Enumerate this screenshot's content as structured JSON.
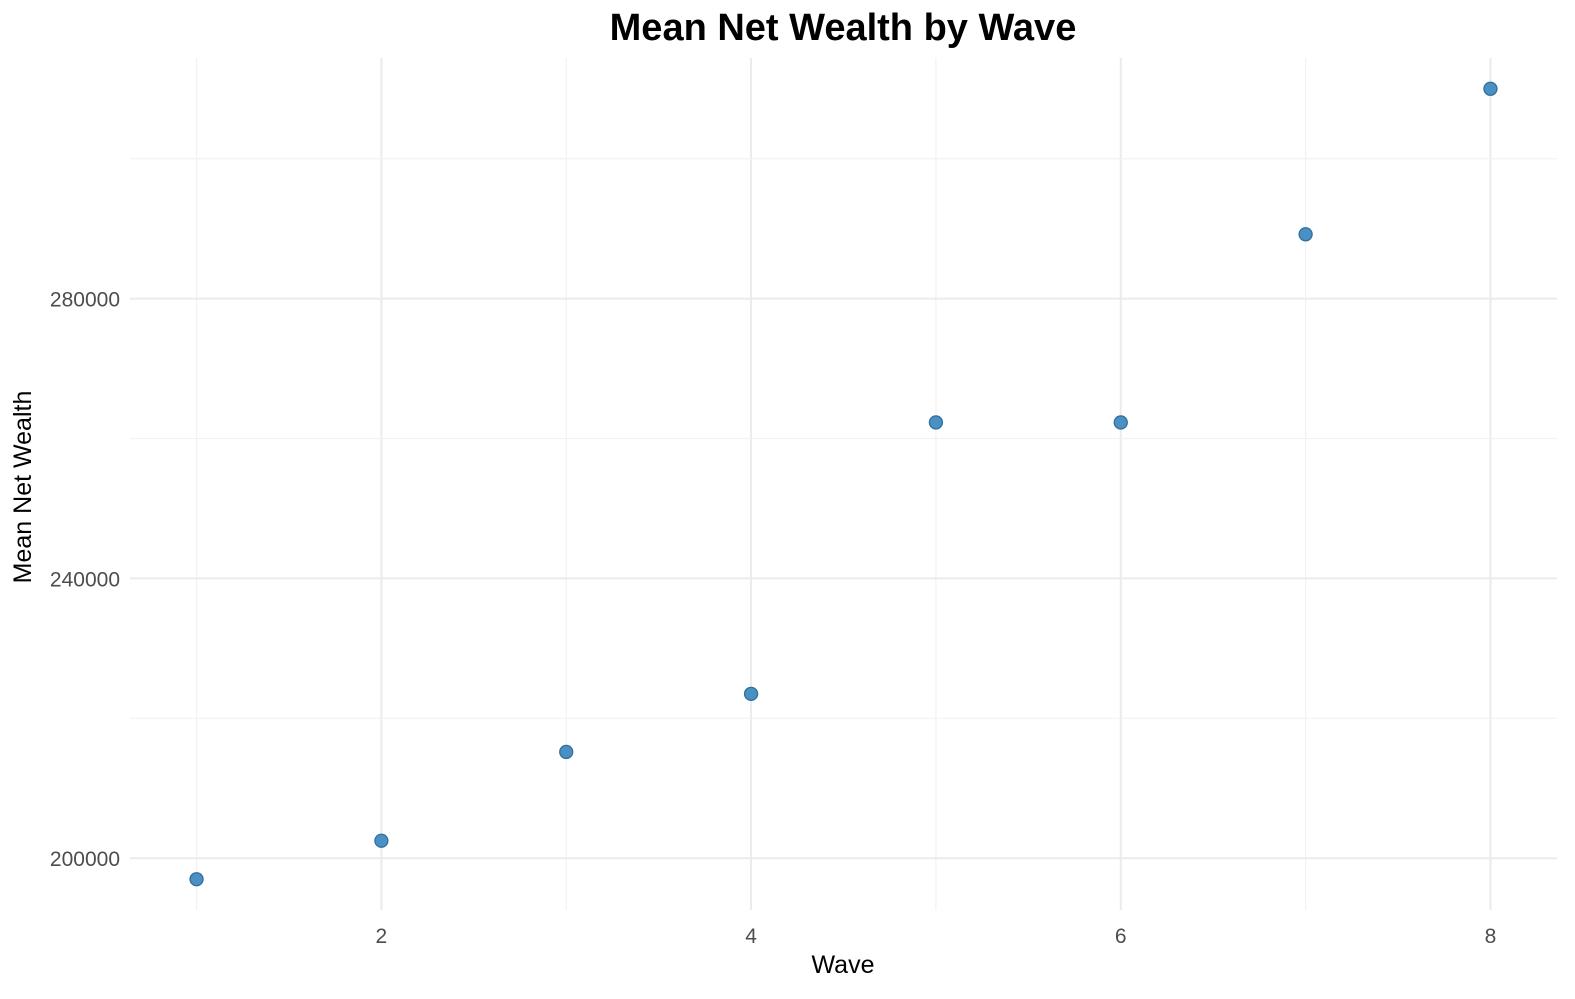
{
  "chart_data": {
    "type": "scatter",
    "title": "Mean Net Wealth by Wave",
    "xlabel": "Wave",
    "ylabel": "Mean Net Wealth",
    "x": [
      1,
      2,
      3,
      4,
      5,
      6,
      7,
      8
    ],
    "y": [
      197000,
      202500,
      215200,
      223500,
      262300,
      262300,
      289200,
      310000
    ],
    "xlim": [
      0.64,
      8.36
    ],
    "ylim": [
      192600,
      314400
    ],
    "x_ticks": [
      2,
      4,
      6,
      8
    ],
    "x_tick_labels": [
      "2",
      "4",
      "6",
      "8"
    ],
    "y_ticks": [
      200000,
      240000,
      280000
    ],
    "y_tick_labels": [
      "200000",
      "240000",
      "280000"
    ],
    "grid": true,
    "legend": "none",
    "point_color": "#4a90c2",
    "point_stroke": "#2f6f9e"
  }
}
